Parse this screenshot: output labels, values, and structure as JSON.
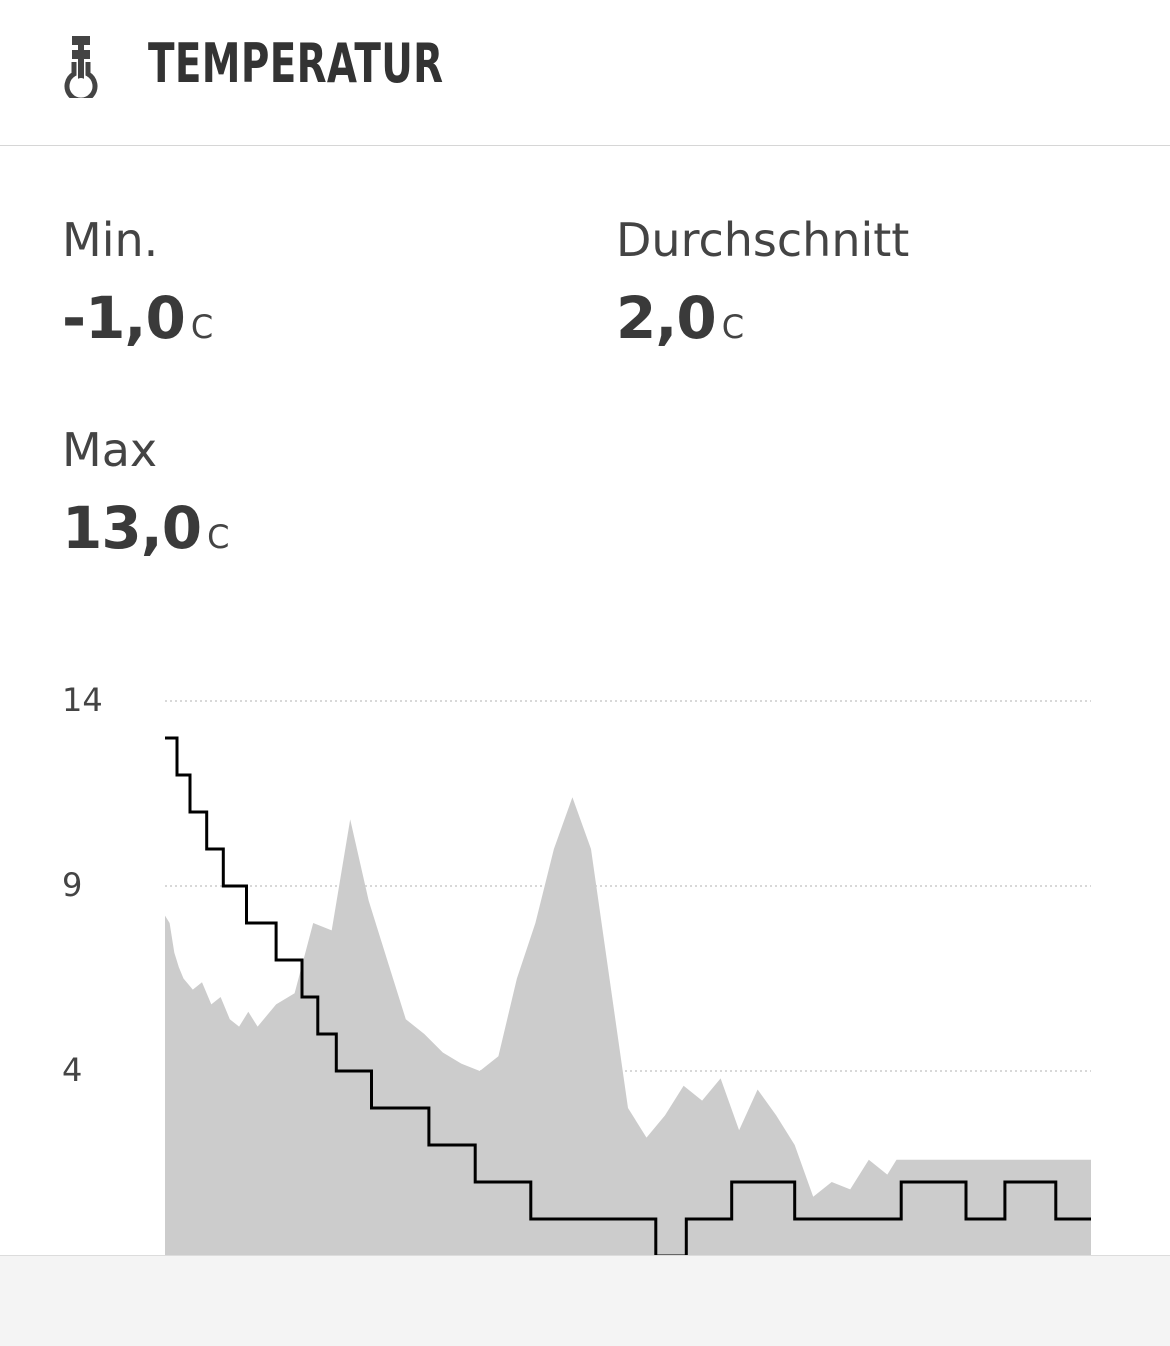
{
  "header": {
    "title": "TEMPERATUR",
    "icon": "thermometer-icon"
  },
  "stats": {
    "min": {
      "label": "Min.",
      "value": "-1,0",
      "unit": "C"
    },
    "avg": {
      "label": "Durchschnitt",
      "value": "2,0",
      "unit": "C"
    },
    "max": {
      "label": "Max",
      "value": "13,0",
      "unit": "C"
    }
  },
  "colors": {
    "area": "#cccccc",
    "line": "#000000",
    "grid": "#cccccc",
    "text": "#333333"
  },
  "chart_data": {
    "type": "area",
    "yticks": [
      "14",
      "9",
      "4"
    ],
    "ylim": [
      -1,
      14
    ],
    "grid": true,
    "series": [
      {
        "type": "area",
        "x": [
          0,
          0.5,
          1,
          1.5,
          2,
          3,
          4,
          5,
          6,
          7,
          8,
          9,
          10,
          12,
          14,
          16,
          18,
          20,
          22,
          24,
          26,
          28,
          30,
          32,
          34,
          36,
          38,
          40,
          42,
          44,
          46,
          48,
          50,
          52,
          54,
          56,
          58,
          60,
          62,
          64,
          66,
          68,
          70,
          72,
          74,
          76,
          78,
          79,
          80,
          82,
          84,
          86,
          88,
          90,
          92,
          94,
          96,
          98,
          100
        ],
        "values": [
          8.2,
          8.0,
          7.2,
          6.8,
          6.5,
          6.2,
          6.4,
          5.8,
          6.0,
          5.4,
          5.2,
          5.6,
          5.2,
          5.8,
          6.1,
          8.0,
          7.8,
          10.8,
          8.6,
          7.0,
          5.4,
          5.0,
          4.5,
          4.2,
          4.0,
          4.4,
          6.5,
          8.0,
          10.0,
          11.4,
          10.0,
          6.5,
          3.0,
          2.2,
          2.8,
          3.6,
          3.2,
          3.8,
          2.4,
          3.5,
          2.8,
          2.0,
          0.6,
          1.0,
          0.8,
          1.6,
          1.2,
          1.6,
          1.6,
          1.6,
          1.6,
          1.6,
          1.6,
          1.6,
          1.6,
          1.6,
          1.6,
          1.6,
          1.6
        ]
      },
      {
        "type": "step",
        "x": [
          0,
          1.3,
          2.7,
          4.5,
          6.3,
          8.8,
          12,
          14.8,
          16.5,
          18.5,
          22.3,
          28.5,
          33.5,
          39.5,
          53,
          56.3,
          61.2,
          68,
          79.5,
          86.5,
          90.7,
          96.2,
          100
        ],
        "values": [
          13,
          12,
          11,
          10,
          9,
          8,
          7,
          6,
          5,
          4,
          3,
          2,
          1,
          0,
          -1,
          0,
          1,
          0,
          1,
          0,
          1,
          0,
          0
        ]
      }
    ]
  }
}
